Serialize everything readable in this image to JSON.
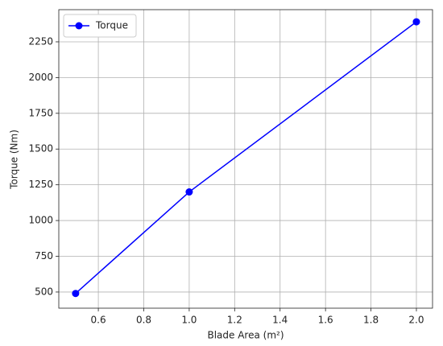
{
  "chart_data": {
    "type": "line",
    "x_label": "Blade Area (m²)",
    "y_label": "Torque (Nm)",
    "x": [
      0.5,
      1.0,
      2.0
    ],
    "series": [
      {
        "name": "Torque",
        "color": "#0000ff",
        "values": [
          490,
          1200,
          2390
        ]
      }
    ],
    "xlim": [
      0.426,
      2.071
    ],
    "ylim": [
      387,
      2475
    ],
    "xticks": [
      0.6,
      0.8,
      {
        "value": 1.0,
        "label": "1.0"
      },
      1.2,
      1.4,
      1.6,
      1.8,
      {
        "value": 2.0,
        "label": "2.0"
      }
    ],
    "yticks": [
      500,
      750,
      1000,
      1250,
      1500,
      1750,
      2000,
      2250
    ],
    "grid": true,
    "legend": "upper-left",
    "marker": "circle"
  }
}
